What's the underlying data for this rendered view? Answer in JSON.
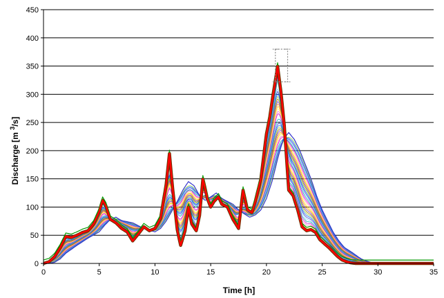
{
  "chart_data": {
    "type": "line",
    "title": "",
    "xlabel": "Time [h]",
    "ylabel": {
      "prefix": "Discharge [m ",
      "sup": "3",
      "suffix": "/s]"
    },
    "xlim": [
      0,
      35
    ],
    "ylim": [
      0,
      450
    ],
    "x_ticks": [
      0,
      5,
      10,
      15,
      20,
      25,
      30,
      35
    ],
    "y_ticks": [
      0,
      50,
      100,
      150,
      200,
      250,
      300,
      350,
      400,
      450
    ],
    "grid": {
      "horizontal": true,
      "vertical": false
    },
    "legend": "none",
    "highlight_box": {
      "x_range": [
        20.8,
        21.9
      ],
      "y_range": [
        322,
        380
      ]
    },
    "colors": {
      "envelope_upper": "#009900",
      "envelope_lower": "#ff0000",
      "envelope_outline": "#663300",
      "ensemble": [
        "#ff8800",
        "#ffcc00",
        "#ffee88",
        "#ff66cc",
        "#cc00cc",
        "#00aaaa",
        "#88ccff",
        "#3333cc",
        "#0066ff",
        "#99cc33",
        "#996600",
        "#6633cc"
      ],
      "highlight_box": "#888888"
    },
    "series": [
      {
        "role": "input-hydrograph",
        "x": [
          0,
          0.5,
          1,
          1.5,
          2,
          2.5,
          3,
          3.5,
          4,
          4.5,
          5,
          5.3,
          5.6,
          6,
          6.5,
          7,
          7.5,
          8,
          8.5,
          9,
          9.5,
          10,
          10.5,
          11,
          11.3,
          11.6,
          12,
          12.3,
          12.7,
          13,
          13.3,
          13.7,
          14,
          14.3,
          14.7,
          15,
          15.3,
          15.7,
          16,
          16.5,
          17,
          17.5,
          17.9,
          18.3,
          18.7,
          19,
          19.5,
          20,
          20.3,
          20.6,
          21,
          21.3,
          21.6,
          22,
          22.4,
          22.8,
          23.2,
          23.6,
          24,
          24.4,
          24.8,
          25.2,
          25.6,
          26,
          26.4,
          26.8,
          27.2,
          27.6,
          28,
          28.5,
          29,
          30,
          35
        ],
        "y": [
          0,
          3,
          12,
          28,
          48,
          46,
          50,
          55,
          58,
          70,
          92,
          112,
          102,
          78,
          72,
          62,
          56,
          40,
          52,
          65,
          58,
          62,
          80,
          140,
          195,
          130,
          60,
          32,
          58,
          100,
          70,
          58,
          85,
          150,
          115,
          100,
          110,
          118,
          105,
          100,
          78,
          62,
          130,
          95,
          90,
          110,
          150,
          230,
          260,
          300,
          350,
          305,
          245,
          130,
          120,
          95,
          65,
          58,
          60,
          55,
          42,
          35,
          28,
          20,
          12,
          6,
          3,
          1,
          0,
          0,
          0,
          0,
          0
        ]
      },
      {
        "role": "output-hydrograph",
        "x": [
          0,
          0.5,
          1,
          1.5,
          2,
          3,
          4,
          5,
          5.5,
          6,
          6.5,
          7,
          8,
          9,
          10,
          10.5,
          11,
          11.5,
          12,
          12.5,
          13,
          13.5,
          14,
          14.5,
          15,
          15.5,
          16,
          17,
          17.5,
          18,
          18.5,
          19,
          19.5,
          20,
          20.5,
          21,
          21.5,
          22,
          22.5,
          23,
          23.5,
          24,
          24.5,
          25,
          25.5,
          26,
          26.5,
          27,
          27.5,
          28,
          28.5,
          29,
          29.5,
          30,
          35
        ],
        "y": [
          0,
          0,
          2,
          8,
          18,
          32,
          45,
          56,
          68,
          78,
          82,
          76,
          72,
          62,
          56,
          62,
          75,
          92,
          110,
          130,
          145,
          138,
          120,
          112,
          118,
          125,
          115,
          105,
          95,
          88,
          82,
          86,
          95,
          115,
          145,
          185,
          220,
          232,
          220,
          200,
          175,
          150,
          120,
          95,
          75,
          55,
          40,
          28,
          22,
          15,
          8,
          4,
          1,
          0,
          0
        ]
      }
    ]
  }
}
